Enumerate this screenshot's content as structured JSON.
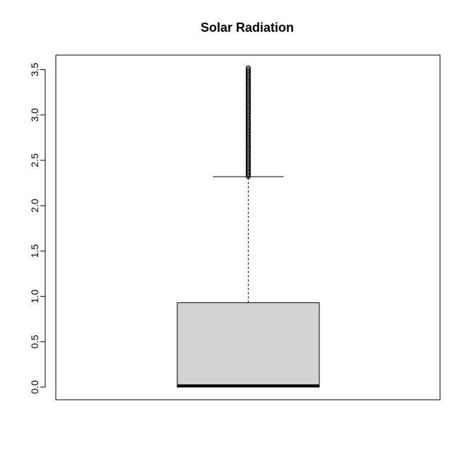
{
  "chart_data": {
    "type": "boxplot",
    "title": "Solar Radiation",
    "xlabel": "",
    "ylabel": "",
    "ylim": [
      -0.14,
      3.66
    ],
    "yticks": [
      0.0,
      0.5,
      1.0,
      1.5,
      2.0,
      2.5,
      3.0,
      3.5
    ],
    "ytick_labels": [
      "0.0",
      "0.5",
      "1.0",
      "1.5",
      "2.0",
      "2.5",
      "3.0",
      "3.5"
    ],
    "box": {
      "min": 0.0,
      "q1": 0.0,
      "median": 0.01,
      "q3": 0.93,
      "whisker_high": 2.32,
      "outlier_range": [
        2.32,
        3.52
      ]
    },
    "colors": {
      "box_fill": "#d3d3d3",
      "line": "#000000",
      "background": "#ffffff"
    },
    "grid": false,
    "legend": "none"
  }
}
